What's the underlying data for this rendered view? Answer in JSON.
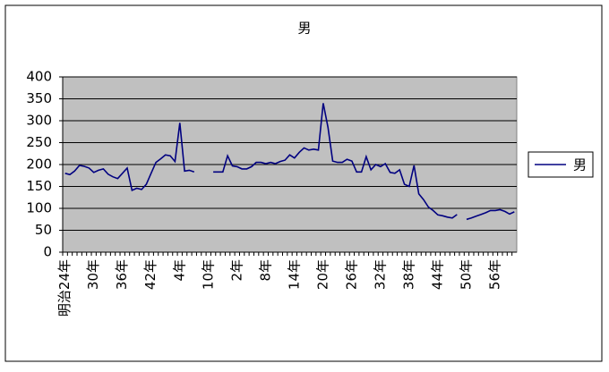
{
  "chart_data": {
    "type": "line",
    "title": "男",
    "categories": [
      "明治24年",
      null,
      null,
      null,
      null,
      null,
      "30年",
      null,
      null,
      null,
      null,
      null,
      "36年",
      null,
      null,
      null,
      null,
      null,
      "42年",
      null,
      null,
      null,
      null,
      null,
      "4年",
      null,
      null,
      null,
      null,
      null,
      "10年",
      null,
      null,
      null,
      null,
      null,
      "2年",
      null,
      null,
      null,
      null,
      null,
      "8年",
      null,
      null,
      null,
      null,
      null,
      "14年",
      null,
      null,
      null,
      null,
      null,
      "20年",
      null,
      null,
      null,
      null,
      null,
      "26年",
      null,
      null,
      null,
      null,
      null,
      "32年",
      null,
      null,
      null,
      null,
      null,
      "38年",
      null,
      null,
      null,
      null,
      null,
      "44年",
      null,
      null,
      null,
      null,
      null,
      "50年",
      null,
      null,
      null,
      null,
      null,
      "56年",
      null,
      null,
      null,
      null
    ],
    "series": [
      {
        "name": "男",
        "color": "#000080",
        "values": [
          180,
          177,
          185,
          198,
          196,
          192,
          182,
          187,
          190,
          178,
          172,
          168,
          180,
          192,
          141,
          146,
          143,
          155,
          180,
          205,
          213,
          222,
          220,
          207,
          295,
          185,
          187,
          183,
          null,
          null,
          null,
          183,
          183,
          183,
          220,
          197,
          195,
          190,
          190,
          195,
          205,
          205,
          202,
          205,
          202,
          207,
          210,
          222,
          215,
          228,
          238,
          233,
          235,
          233,
          340,
          285,
          208,
          205,
          205,
          212,
          208,
          183,
          183,
          218,
          188,
          200,
          195,
          202,
          182,
          180,
          188,
          155,
          150,
          198,
          133,
          120,
          103,
          95,
          85,
          83,
          80,
          78,
          86,
          null,
          75,
          78,
          82,
          86,
          90,
          95,
          95,
          97,
          93,
          87,
          92
        ]
      }
    ],
    "ylim": [
      0,
      400
    ],
    "yticks": [
      0,
      50,
      100,
      150,
      200,
      250,
      300,
      350,
      400
    ],
    "grid": true,
    "legend": "right"
  }
}
